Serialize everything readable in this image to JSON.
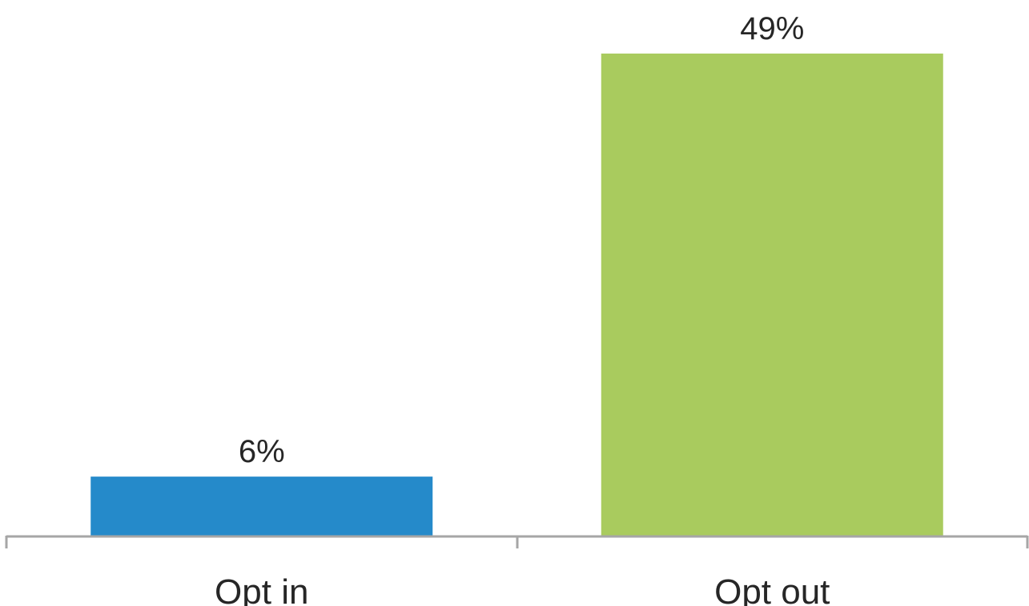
{
  "chart_data": {
    "type": "bar",
    "categories": [
      "Opt in",
      "Opt out"
    ],
    "values": [
      6,
      49
    ],
    "value_labels": [
      "6%",
      "49%"
    ],
    "bar_colors": [
      "#258ACA",
      "#A9CB5E"
    ],
    "axis_color": "#A6A6A6",
    "ylim": [
      0,
      49
    ],
    "grid": false,
    "legend": "none"
  }
}
